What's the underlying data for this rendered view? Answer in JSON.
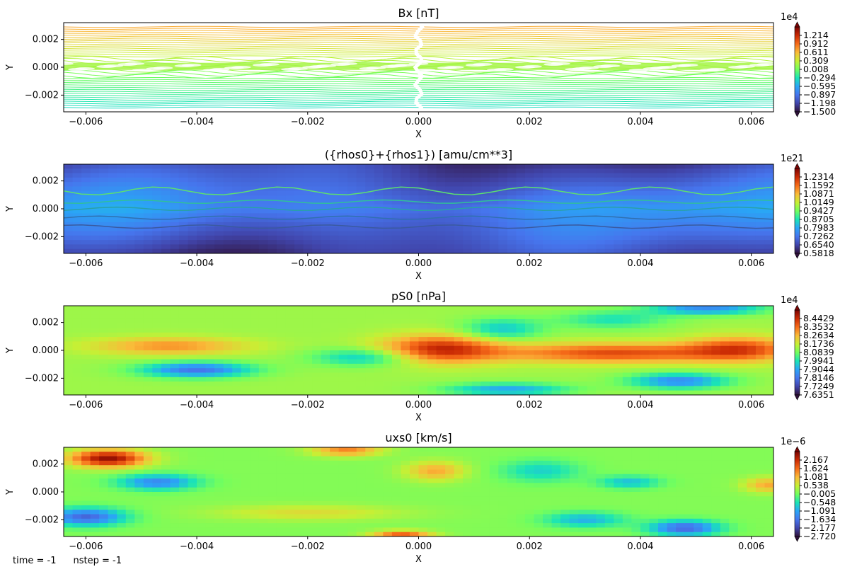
{
  "footer": {
    "time": "time = -1",
    "nstep": "nstep = -1"
  },
  "chart_data": [
    {
      "type": "contour",
      "title": "Bx [nT]",
      "xlabel": "X",
      "ylabel": "Y",
      "xlim": [
        -0.0064,
        0.0064
      ],
      "ylim": [
        -0.0032,
        0.0032
      ],
      "xticks": [
        "−0.006",
        "−0.004",
        "−0.002",
        "0.000",
        "0.002",
        "0.004",
        "0.006"
      ],
      "yticks": [
        "0.002",
        "0.000",
        "−0.002"
      ],
      "colormap": "turbo",
      "fill": false,
      "colorbar": {
        "exponent": "1e4",
        "ticks": [
          "1.214",
          "0.912",
          "0.611",
          "0.309",
          "0.008",
          "−0.294",
          "−0.595",
          "−0.897",
          "−1.198",
          "−1.500"
        ]
      }
    },
    {
      "type": "contour",
      "title": "({rhos0}+{rhos1}) [amu/cm**3]",
      "xlabel": "X",
      "ylabel": "Y",
      "xlim": [
        -0.0064,
        0.0064
      ],
      "ylim": [
        -0.0032,
        0.0032
      ],
      "xticks": [
        "−0.006",
        "−0.004",
        "−0.002",
        "0.000",
        "0.002",
        "0.004",
        "0.006"
      ],
      "yticks": [
        "0.002",
        "0.000",
        "−0.002"
      ],
      "colormap": "turbo",
      "fill": true,
      "colorbar": {
        "exponent": "1e21",
        "ticks": [
          "1.2314",
          "1.1592",
          "1.0871",
          "1.0149",
          "0.9427",
          "0.8705",
          "0.7983",
          "0.7262",
          "0.6540",
          "0.5818"
        ]
      }
    },
    {
      "type": "contour",
      "title": "pS0 [nPa]",
      "xlabel": "X",
      "ylabel": "Y",
      "xlim": [
        -0.0064,
        0.0064
      ],
      "ylim": [
        -0.0032,
        0.0032
      ],
      "xticks": [
        "−0.006",
        "−0.004",
        "−0.002",
        "0.000",
        "0.002",
        "0.004",
        "0.006"
      ],
      "yticks": [
        "0.002",
        "0.000",
        "−0.002"
      ],
      "colormap": "turbo",
      "fill": true,
      "colorbar": {
        "exponent": "1e4",
        "ticks": [
          "8.4429",
          "8.3532",
          "8.2634",
          "8.1736",
          "8.0839",
          "7.9941",
          "7.9044",
          "7.8146",
          "7.7249",
          "7.6351"
        ]
      }
    },
    {
      "type": "contour",
      "title": "uxs0 [km/s]",
      "xlabel": "X",
      "ylabel": "Y",
      "xlim": [
        -0.0064,
        0.0064
      ],
      "ylim": [
        -0.0032,
        0.0032
      ],
      "xticks": [
        "−0.006",
        "−0.004",
        "−0.002",
        "0.000",
        "0.002",
        "0.004",
        "0.006"
      ],
      "yticks": [
        "0.002",
        "0.000",
        "−0.002"
      ],
      "colormap": "turbo",
      "fill": true,
      "colorbar": {
        "exponent": "1e−6",
        "ticks": [
          "2.167",
          "1.624",
          "1.081",
          "0.538",
          "−0.005",
          "−0.548",
          "−1.091",
          "−1.634",
          "−2.177",
          "−2.720"
        ]
      }
    }
  ]
}
